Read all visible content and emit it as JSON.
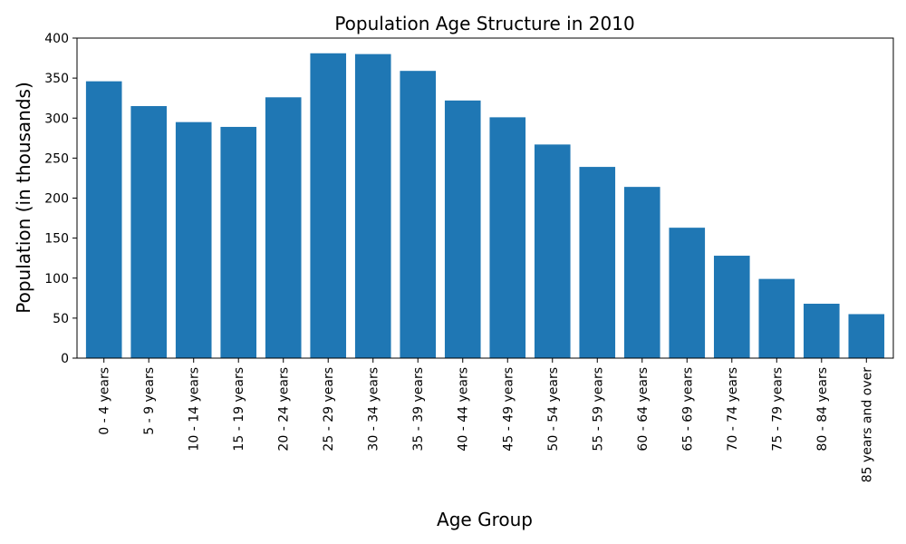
{
  "chart_data": {
    "type": "bar",
    "title": "Population Age Structure in 2010",
    "xlabel": "Age Group",
    "ylabel": "Population (in thousands)",
    "categories": [
      "0 - 4 years",
      "5 - 9 years",
      "10 - 14 years",
      "15 - 19 years",
      "20 - 24 years",
      "25 - 29 years",
      "30 - 34 years",
      "35 - 39 years",
      "40 - 44 years",
      "45 - 49 years",
      "50 - 54 years",
      "55 - 59 years",
      "60 - 64 years",
      "65 - 69 years",
      "70 - 74 years",
      "75 - 79 years",
      "80 - 84 years",
      "85 years and over"
    ],
    "values": [
      346,
      315,
      295,
      289,
      326,
      381,
      380,
      359,
      322,
      301,
      267,
      239,
      214,
      163,
      128,
      99,
      68,
      55
    ],
    "ylim": [
      0,
      400
    ],
    "yticks": [
      0,
      50,
      100,
      150,
      200,
      250,
      300,
      350,
      400
    ],
    "bar_color": "#1f77b4",
    "grid": false,
    "legend": "none"
  }
}
